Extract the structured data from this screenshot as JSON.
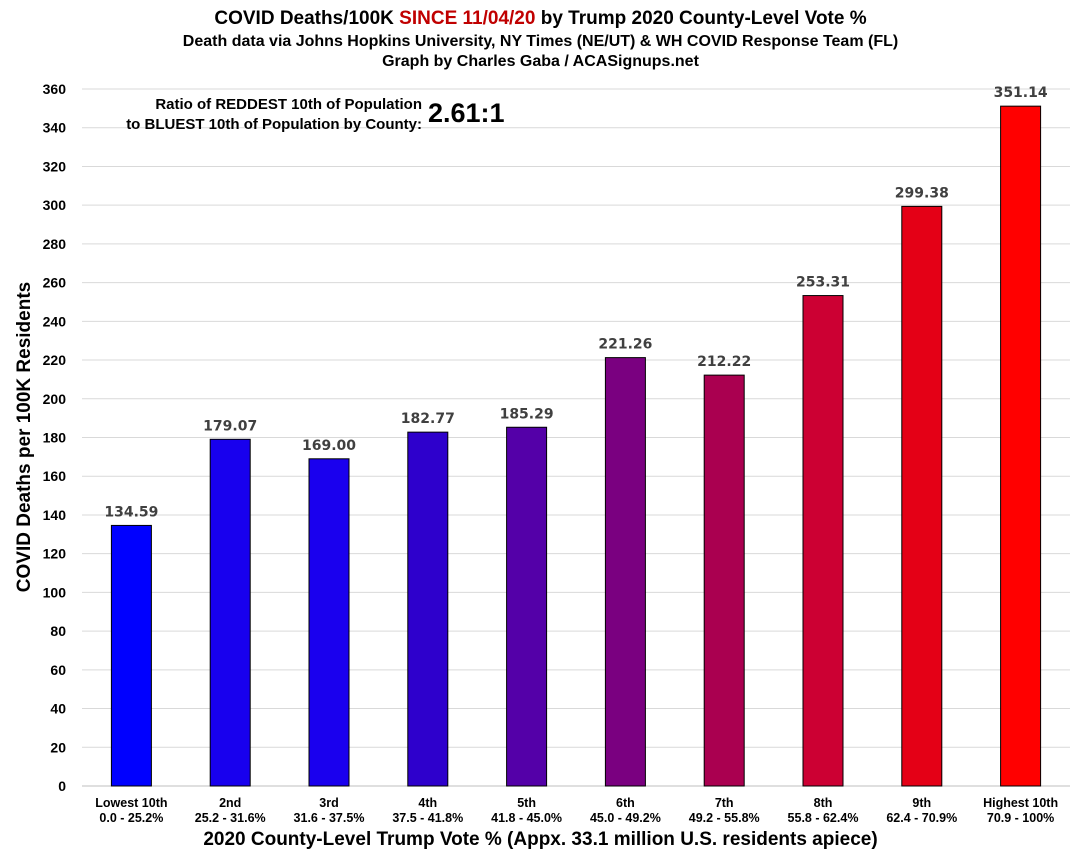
{
  "title": {
    "pre": "COVID Deaths/100K ",
    "highlight": "SINCE 11/04/20",
    "post": " by Trump 2020 County-Level Vote %",
    "highlight_color": "#c00000"
  },
  "subtitle_1": "Death data via Johns Hopkins University, NY Times (NE/UT) & WH COVID Response Team (FL)",
  "subtitle_2": "Graph by Charles Gaba / ACASignups.net",
  "annotation": {
    "line1": "Ratio of REDDEST 10th of Population",
    "line2": "to BLUEST 10th of Population by County:",
    "value": "2.61:1"
  },
  "chart_data": {
    "type": "bar",
    "title": "COVID Deaths/100K SINCE 11/04/20 by Trump 2020 County-Level Vote %",
    "xlabel": "2020 County-Level Trump Vote % (Appx. 33.1 million U.S. residents apiece)",
    "ylabel": "COVID Deaths per 100K Residents",
    "ylim": [
      0,
      360
    ],
    "ytick_step": 20,
    "grid": true,
    "categories": [
      {
        "name": "Lowest 10th",
        "range": "0.0 - 25.2%"
      },
      {
        "name": "2nd",
        "range": "25.2 - 31.6%"
      },
      {
        "name": "3rd",
        "range": "31.6 - 37.5%"
      },
      {
        "name": "4th",
        "range": "37.5 - 41.8%"
      },
      {
        "name": "5th",
        "range": "41.8 - 45.0%"
      },
      {
        "name": "6th",
        "range": "45.0 - 49.2%"
      },
      {
        "name": "7th",
        "range": "49.2 - 55.8%"
      },
      {
        "name": "8th",
        "range": "55.8 - 62.4%"
      },
      {
        "name": "9th",
        "range": "62.4 - 70.9%"
      },
      {
        "name": "Highest 10th",
        "range": "70.9 - 100%"
      }
    ],
    "values": [
      134.59,
      179.07,
      169.0,
      182.77,
      185.29,
      221.26,
      212.22,
      253.31,
      299.38,
      351.14
    ],
    "value_labels": [
      "134.59",
      "179.07",
      "169.00",
      "182.77",
      "185.29",
      "221.26",
      "212.22",
      "253.31",
      "299.38",
      "351.14"
    ],
    "colors": [
      "#0000ff",
      "#1800ee",
      "#1a00ee",
      "#2e00cc",
      "#5400a8",
      "#7a0080",
      "#aa0050",
      "#cc0033",
      "#e40016",
      "#ff0000"
    ]
  }
}
